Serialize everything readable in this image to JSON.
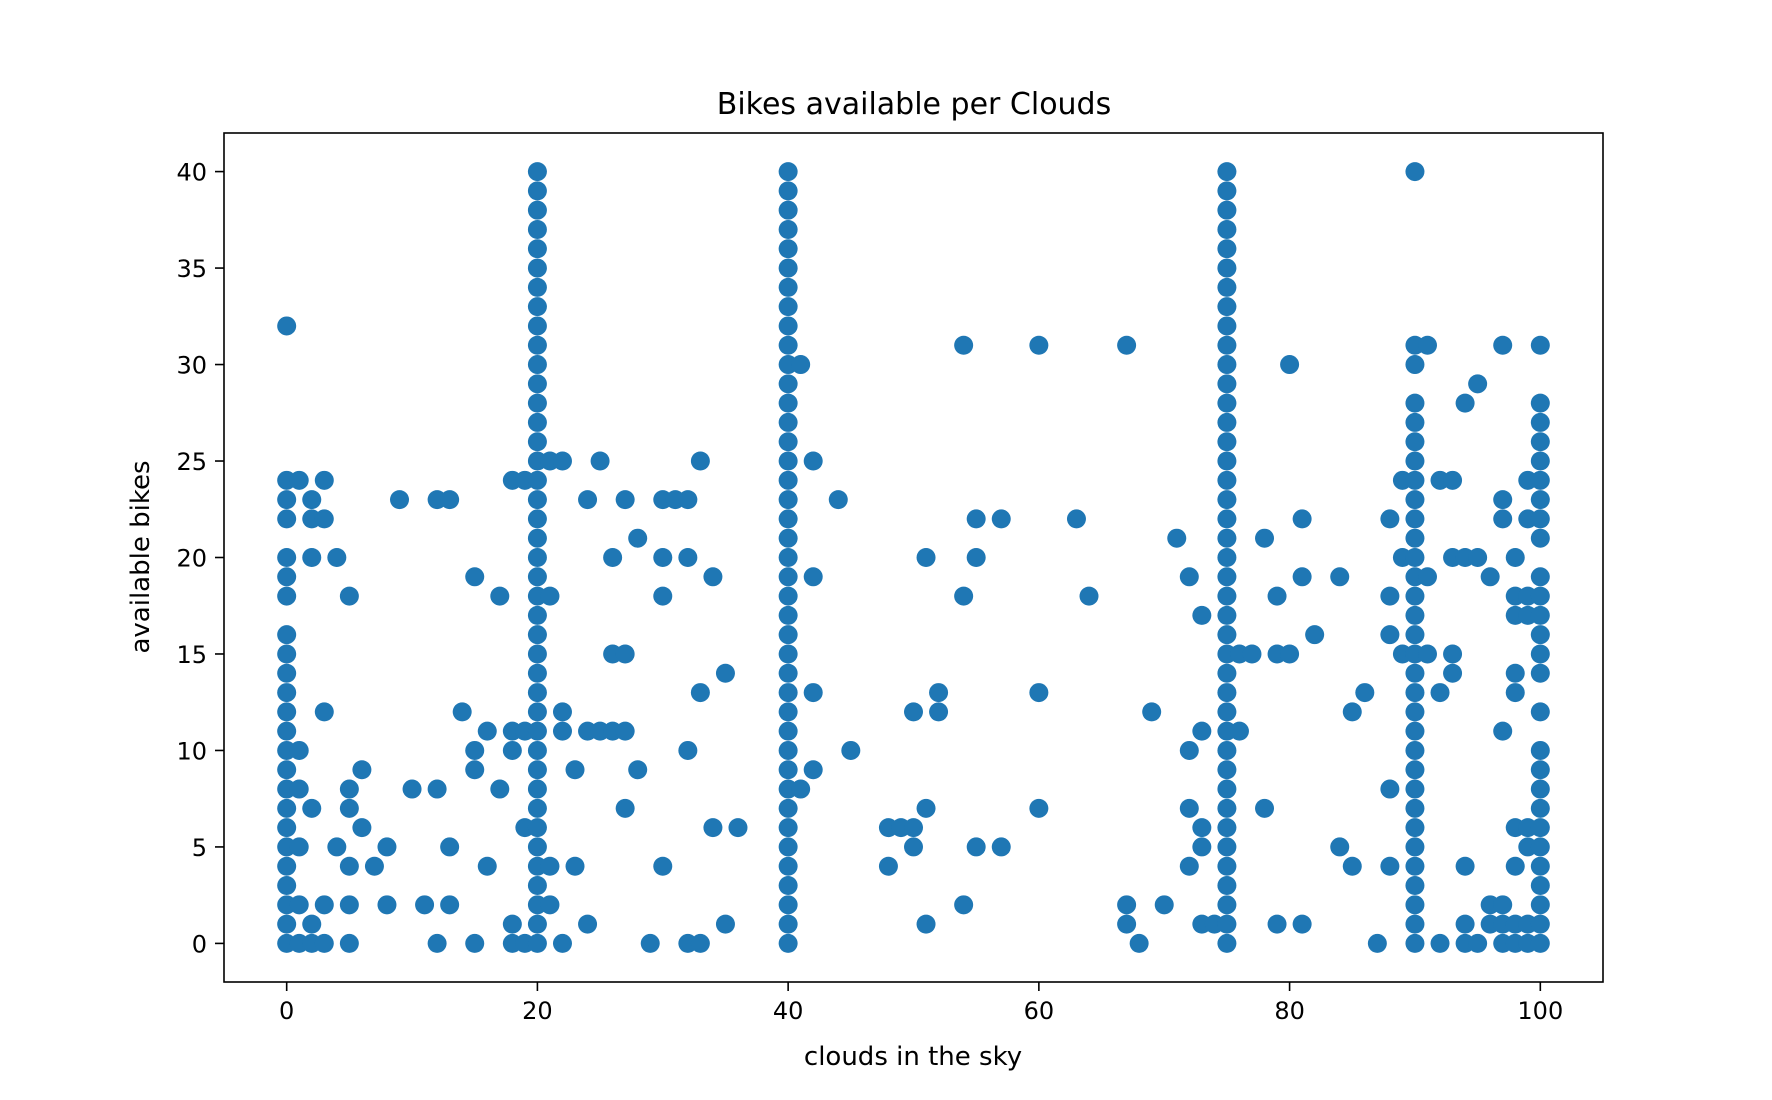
{
  "chart_data": {
    "type": "scatter",
    "title": "Bikes available per Clouds",
    "xlabel": "clouds in the sky",
    "ylabel": "available bikes",
    "xlim": [
      -5,
      105
    ],
    "ylim": [
      -2,
      42
    ],
    "xticks": [
      0,
      20,
      40,
      60,
      80,
      100
    ],
    "yticks": [
      0,
      5,
      10,
      15,
      20,
      25,
      30,
      35,
      40
    ],
    "grid": false,
    "legend": "none",
    "color": "#1f77b4",
    "points": [
      [
        0,
        32
      ],
      [
        0,
        24
      ],
      [
        0,
        23
      ],
      [
        0,
        22
      ],
      [
        0,
        20
      ],
      [
        0,
        19
      ],
      [
        0,
        18
      ],
      [
        0,
        16
      ],
      [
        0,
        15
      ],
      [
        0,
        14
      ],
      [
        0,
        13
      ],
      [
        0,
        12
      ],
      [
        0,
        11
      ],
      [
        0,
        10
      ],
      [
        0,
        9
      ],
      [
        0,
        8
      ],
      [
        0,
        7
      ],
      [
        0,
        6
      ],
      [
        0,
        5
      ],
      [
        0,
        4
      ],
      [
        0,
        3
      ],
      [
        0,
        2
      ],
      [
        0,
        1
      ],
      [
        0,
        0
      ],
      [
        1,
        24
      ],
      [
        1,
        10
      ],
      [
        1,
        8
      ],
      [
        1,
        5
      ],
      [
        1,
        2
      ],
      [
        1,
        0
      ],
      [
        2,
        23
      ],
      [
        2,
        22
      ],
      [
        2,
        20
      ],
      [
        2,
        7
      ],
      [
        2,
        1
      ],
      [
        2,
        0
      ],
      [
        3,
        24
      ],
      [
        3,
        22
      ],
      [
        3,
        12
      ],
      [
        3,
        2
      ],
      [
        3,
        0
      ],
      [
        4,
        20
      ],
      [
        4,
        5
      ],
      [
        5,
        18
      ],
      [
        5,
        8
      ],
      [
        5,
        7
      ],
      [
        5,
        4
      ],
      [
        5,
        2
      ],
      [
        5,
        0
      ],
      [
        6,
        9
      ],
      [
        6,
        6
      ],
      [
        7,
        4
      ],
      [
        8,
        5
      ],
      [
        8,
        2
      ],
      [
        9,
        23
      ],
      [
        10,
        8
      ],
      [
        11,
        2
      ],
      [
        12,
        23
      ],
      [
        12,
        8
      ],
      [
        12,
        0
      ],
      [
        13,
        23
      ],
      [
        13,
        5
      ],
      [
        13,
        2
      ],
      [
        14,
        12
      ],
      [
        15,
        19
      ],
      [
        15,
        10
      ],
      [
        15,
        9
      ],
      [
        15,
        0
      ],
      [
        16,
        11
      ],
      [
        16,
        4
      ],
      [
        17,
        18
      ],
      [
        17,
        8
      ],
      [
        18,
        24
      ],
      [
        18,
        11
      ],
      [
        18,
        10
      ],
      [
        18,
        1
      ],
      [
        18,
        0
      ],
      [
        19,
        24
      ],
      [
        19,
        11
      ],
      [
        19,
        6
      ],
      [
        19,
        0
      ],
      [
        20,
        40
      ],
      [
        20,
        39
      ],
      [
        20,
        38
      ],
      [
        20,
        37
      ],
      [
        20,
        36
      ],
      [
        20,
        35
      ],
      [
        20,
        34
      ],
      [
        20,
        33
      ],
      [
        20,
        32
      ],
      [
        20,
        31
      ],
      [
        20,
        30
      ],
      [
        20,
        29
      ],
      [
        20,
        28
      ],
      [
        20,
        27
      ],
      [
        20,
        26
      ],
      [
        20,
        25
      ],
      [
        20,
        24
      ],
      [
        20,
        23
      ],
      [
        20,
        22
      ],
      [
        20,
        21
      ],
      [
        20,
        20
      ],
      [
        20,
        19
      ],
      [
        20,
        18
      ],
      [
        20,
        17
      ],
      [
        20,
        16
      ],
      [
        20,
        15
      ],
      [
        20,
        14
      ],
      [
        20,
        13
      ],
      [
        20,
        12
      ],
      [
        20,
        11
      ],
      [
        20,
        10
      ],
      [
        20,
        9
      ],
      [
        20,
        8
      ],
      [
        20,
        7
      ],
      [
        20,
        6
      ],
      [
        20,
        5
      ],
      [
        20,
        4
      ],
      [
        20,
        3
      ],
      [
        20,
        2
      ],
      [
        20,
        1
      ],
      [
        20,
        0
      ],
      [
        21,
        25
      ],
      [
        21,
        18
      ],
      [
        21,
        4
      ],
      [
        21,
        2
      ],
      [
        22,
        25
      ],
      [
        22,
        12
      ],
      [
        22,
        11
      ],
      [
        22,
        0
      ],
      [
        23,
        9
      ],
      [
        23,
        4
      ],
      [
        24,
        23
      ],
      [
        24,
        11
      ],
      [
        24,
        1
      ],
      [
        25,
        25
      ],
      [
        25,
        11
      ],
      [
        26,
        20
      ],
      [
        26,
        15
      ],
      [
        26,
        11
      ],
      [
        27,
        23
      ],
      [
        27,
        15
      ],
      [
        27,
        11
      ],
      [
        27,
        7
      ],
      [
        28,
        21
      ],
      [
        28,
        9
      ],
      [
        29,
        0
      ],
      [
        30,
        23
      ],
      [
        30,
        20
      ],
      [
        30,
        18
      ],
      [
        30,
        4
      ],
      [
        31,
        23
      ],
      [
        32,
        23
      ],
      [
        32,
        20
      ],
      [
        32,
        10
      ],
      [
        32,
        0
      ],
      [
        33,
        25
      ],
      [
        33,
        13
      ],
      [
        33,
        0
      ],
      [
        34,
        19
      ],
      [
        34,
        6
      ],
      [
        35,
        14
      ],
      [
        35,
        1
      ],
      [
        36,
        6
      ],
      [
        40,
        40
      ],
      [
        40,
        39
      ],
      [
        40,
        38
      ],
      [
        40,
        37
      ],
      [
        40,
        36
      ],
      [
        40,
        35
      ],
      [
        40,
        34
      ],
      [
        40,
        33
      ],
      [
        40,
        32
      ],
      [
        40,
        31
      ],
      [
        40,
        30
      ],
      [
        40,
        29
      ],
      [
        40,
        28
      ],
      [
        40,
        27
      ],
      [
        40,
        26
      ],
      [
        40,
        25
      ],
      [
        40,
        24
      ],
      [
        40,
        23
      ],
      [
        40,
        22
      ],
      [
        40,
        21
      ],
      [
        40,
        20
      ],
      [
        40,
        19
      ],
      [
        40,
        18
      ],
      [
        40,
        17
      ],
      [
        40,
        16
      ],
      [
        40,
        15
      ],
      [
        40,
        14
      ],
      [
        40,
        13
      ],
      [
        40,
        12
      ],
      [
        40,
        11
      ],
      [
        40,
        10
      ],
      [
        40,
        9
      ],
      [
        40,
        8
      ],
      [
        40,
        7
      ],
      [
        40,
        6
      ],
      [
        40,
        5
      ],
      [
        40,
        4
      ],
      [
        40,
        3
      ],
      [
        40,
        2
      ],
      [
        40,
        1
      ],
      [
        40,
        0
      ],
      [
        41,
        30
      ],
      [
        41,
        8
      ],
      [
        42,
        25
      ],
      [
        42,
        19
      ],
      [
        42,
        13
      ],
      [
        42,
        9
      ],
      [
        44,
        23
      ],
      [
        45,
        10
      ],
      [
        48,
        6
      ],
      [
        48,
        4
      ],
      [
        49,
        6
      ],
      [
        50,
        6
      ],
      [
        50,
        5
      ],
      [
        50,
        12
      ],
      [
        51,
        20
      ],
      [
        51,
        7
      ],
      [
        51,
        1
      ],
      [
        52,
        13
      ],
      [
        52,
        12
      ],
      [
        54,
        31
      ],
      [
        54,
        18
      ],
      [
        54,
        2
      ],
      [
        55,
        22
      ],
      [
        55,
        20
      ],
      [
        55,
        5
      ],
      [
        57,
        22
      ],
      [
        57,
        5
      ],
      [
        60,
        31
      ],
      [
        60,
        13
      ],
      [
        60,
        7
      ],
      [
        63,
        22
      ],
      [
        64,
        18
      ],
      [
        67,
        31
      ],
      [
        67,
        2
      ],
      [
        67,
        1
      ],
      [
        68,
        0
      ],
      [
        69,
        12
      ],
      [
        70,
        2
      ],
      [
        71,
        21
      ],
      [
        72,
        19
      ],
      [
        72,
        10
      ],
      [
        72,
        7
      ],
      [
        72,
        4
      ],
      [
        73,
        17
      ],
      [
        73,
        11
      ],
      [
        73,
        6
      ],
      [
        73,
        5
      ],
      [
        73,
        1
      ],
      [
        74,
        1
      ],
      [
        75,
        40
      ],
      [
        75,
        39
      ],
      [
        75,
        38
      ],
      [
        75,
        37
      ],
      [
        75,
        36
      ],
      [
        75,
        35
      ],
      [
        75,
        34
      ],
      [
        75,
        33
      ],
      [
        75,
        32
      ],
      [
        75,
        31
      ],
      [
        75,
        30
      ],
      [
        75,
        29
      ],
      [
        75,
        28
      ],
      [
        75,
        27
      ],
      [
        75,
        26
      ],
      [
        75,
        25
      ],
      [
        75,
        24
      ],
      [
        75,
        23
      ],
      [
        75,
        22
      ],
      [
        75,
        21
      ],
      [
        75,
        20
      ],
      [
        75,
        19
      ],
      [
        75,
        18
      ],
      [
        75,
        17
      ],
      [
        75,
        16
      ],
      [
        75,
        15
      ],
      [
        75,
        14
      ],
      [
        75,
        13
      ],
      [
        75,
        12
      ],
      [
        75,
        11
      ],
      [
        75,
        10
      ],
      [
        75,
        9
      ],
      [
        75,
        8
      ],
      [
        75,
        7
      ],
      [
        75,
        6
      ],
      [
        75,
        5
      ],
      [
        75,
        4
      ],
      [
        75,
        3
      ],
      [
        75,
        2
      ],
      [
        75,
        1
      ],
      [
        75,
        0
      ],
      [
        76,
        15
      ],
      [
        76,
        11
      ],
      [
        77,
        15
      ],
      [
        78,
        21
      ],
      [
        78,
        7
      ],
      [
        79,
        18
      ],
      [
        79,
        15
      ],
      [
        79,
        1
      ],
      [
        80,
        30
      ],
      [
        80,
        15
      ],
      [
        81,
        22
      ],
      [
        81,
        19
      ],
      [
        81,
        1
      ],
      [
        82,
        16
      ],
      [
        84,
        19
      ],
      [
        84,
        5
      ],
      [
        85,
        12
      ],
      [
        85,
        4
      ],
      [
        86,
        13
      ],
      [
        87,
        0
      ],
      [
        88,
        22
      ],
      [
        88,
        18
      ],
      [
        88,
        16
      ],
      [
        88,
        8
      ],
      [
        88,
        4
      ],
      [
        89,
        24
      ],
      [
        89,
        20
      ],
      [
        89,
        15
      ],
      [
        90,
        40
      ],
      [
        90,
        31
      ],
      [
        90,
        30
      ],
      [
        90,
        28
      ],
      [
        90,
        27
      ],
      [
        90,
        26
      ],
      [
        90,
        25
      ],
      [
        90,
        24
      ],
      [
        90,
        23
      ],
      [
        90,
        22
      ],
      [
        90,
        21
      ],
      [
        90,
        20
      ],
      [
        90,
        19
      ],
      [
        90,
        18
      ],
      [
        90,
        17
      ],
      [
        90,
        16
      ],
      [
        90,
        15
      ],
      [
        90,
        14
      ],
      [
        90,
        13
      ],
      [
        90,
        12
      ],
      [
        90,
        11
      ],
      [
        90,
        10
      ],
      [
        90,
        9
      ],
      [
        90,
        8
      ],
      [
        90,
        7
      ],
      [
        90,
        6
      ],
      [
        90,
        5
      ],
      [
        90,
        4
      ],
      [
        90,
        3
      ],
      [
        90,
        2
      ],
      [
        90,
        1
      ],
      [
        90,
        0
      ],
      [
        91,
        31
      ],
      [
        91,
        19
      ],
      [
        91,
        15
      ],
      [
        92,
        24
      ],
      [
        92,
        13
      ],
      [
        92,
        0
      ],
      [
        93,
        24
      ],
      [
        93,
        20
      ],
      [
        93,
        15
      ],
      [
        93,
        14
      ],
      [
        94,
        28
      ],
      [
        94,
        20
      ],
      [
        94,
        4
      ],
      [
        94,
        1
      ],
      [
        94,
        0
      ],
      [
        95,
        29
      ],
      [
        95,
        20
      ],
      [
        95,
        0
      ],
      [
        96,
        19
      ],
      [
        96,
        2
      ],
      [
        96,
        1
      ],
      [
        97,
        31
      ],
      [
        97,
        23
      ],
      [
        97,
        22
      ],
      [
        97,
        11
      ],
      [
        97,
        2
      ],
      [
        97,
        1
      ],
      [
        97,
        0
      ],
      [
        98,
        20
      ],
      [
        98,
        18
      ],
      [
        98,
        17
      ],
      [
        98,
        14
      ],
      [
        98,
        13
      ],
      [
        98,
        6
      ],
      [
        98,
        4
      ],
      [
        98,
        1
      ],
      [
        98,
        0
      ],
      [
        99,
        24
      ],
      [
        99,
        22
      ],
      [
        99,
        18
      ],
      [
        99,
        17
      ],
      [
        99,
        6
      ],
      [
        99,
        5
      ],
      [
        99,
        1
      ],
      [
        99,
        0
      ],
      [
        100,
        31
      ],
      [
        100,
        28
      ],
      [
        100,
        27
      ],
      [
        100,
        26
      ],
      [
        100,
        25
      ],
      [
        100,
        24
      ],
      [
        100,
        23
      ],
      [
        100,
        22
      ],
      [
        100,
        21
      ],
      [
        100,
        19
      ],
      [
        100,
        18
      ],
      [
        100,
        17
      ],
      [
        100,
        16
      ],
      [
        100,
        15
      ],
      [
        100,
        14
      ],
      [
        100,
        12
      ],
      [
        100,
        10
      ],
      [
        100,
        9
      ],
      [
        100,
        8
      ],
      [
        100,
        7
      ],
      [
        100,
        6
      ],
      [
        100,
        5
      ],
      [
        100,
        4
      ],
      [
        100,
        3
      ],
      [
        100,
        2
      ],
      [
        100,
        1
      ],
      [
        100,
        0
      ]
    ]
  }
}
